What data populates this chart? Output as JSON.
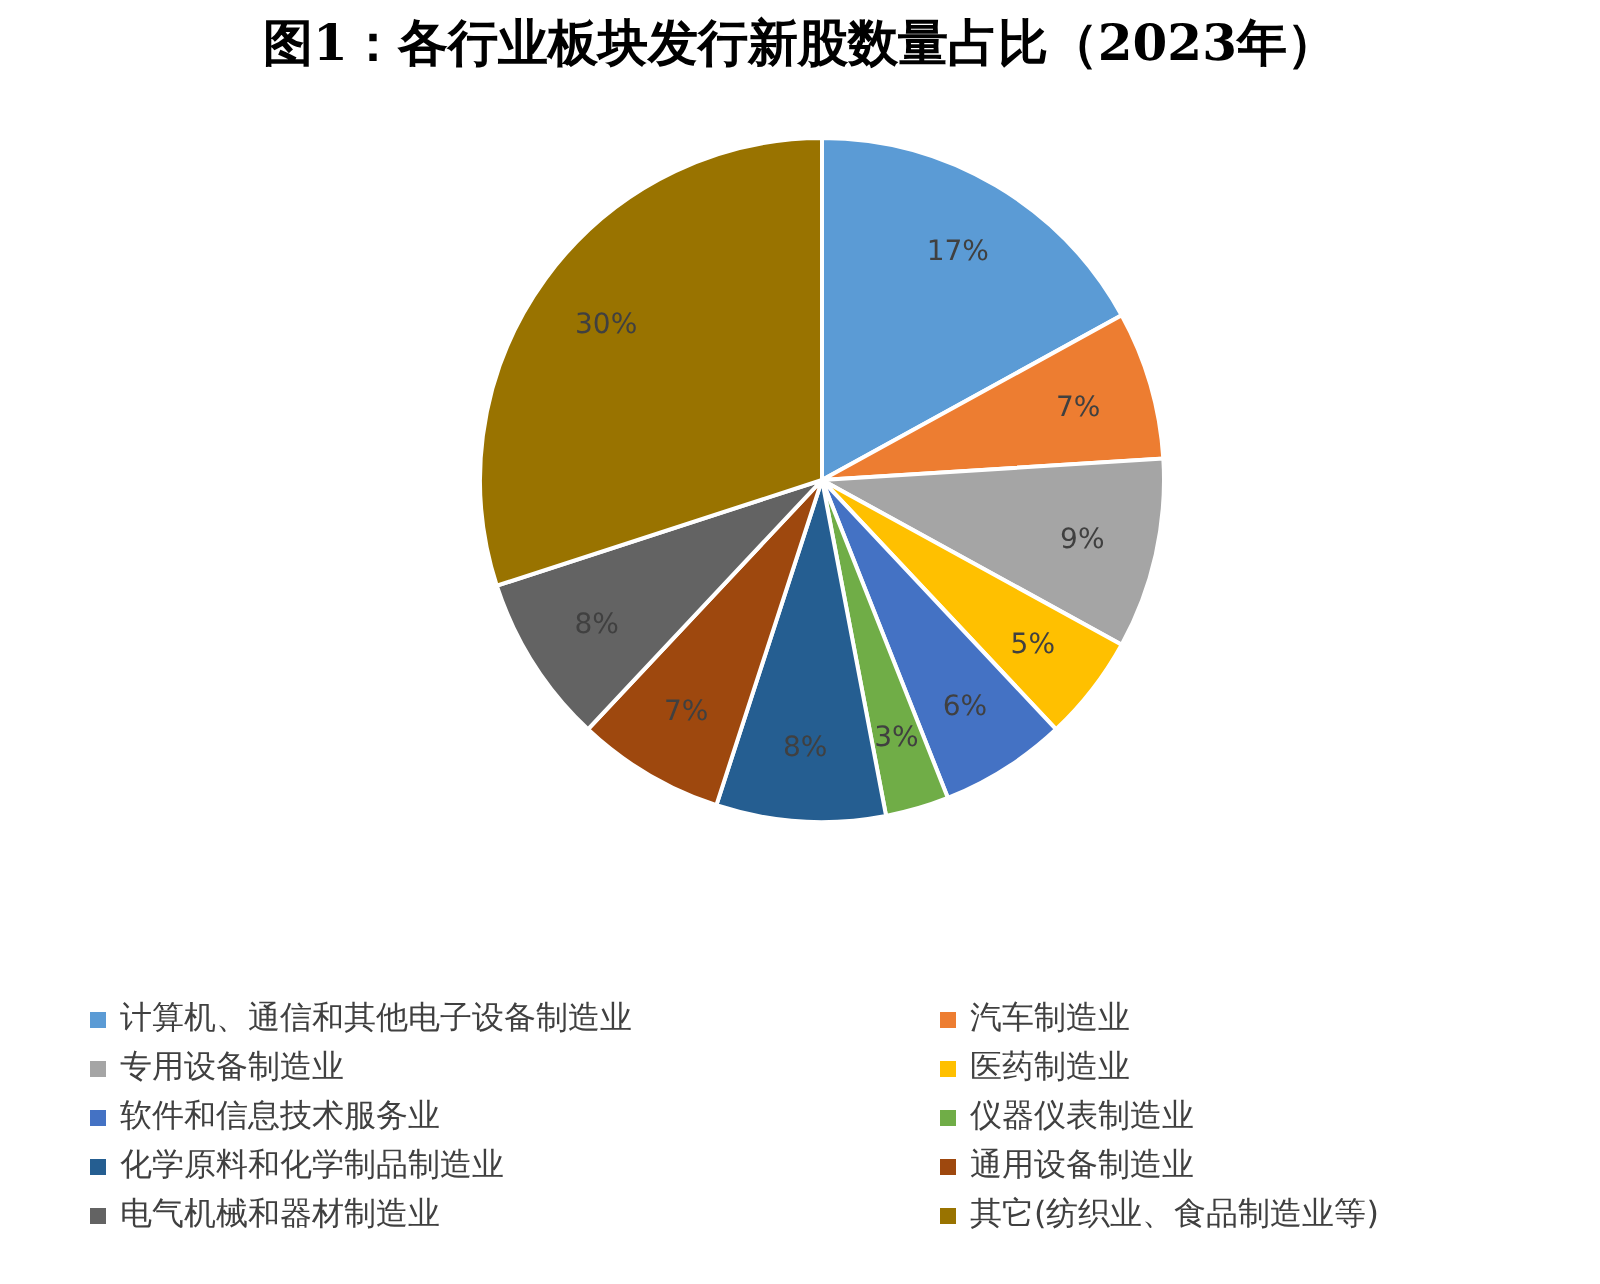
{
  "chart_data": {
    "type": "pie",
    "title": "图1：各行业板块发行新股数量占比（2023年）",
    "categories": [
      "计算机、通信和其他电子设备制造业",
      "汽车制造业",
      "专用设备制造业",
      "医药制造业",
      "软件和信息技术服务业",
      "仪器仪表制造业",
      "化学原料和化学制品制造业",
      "通用设备制造业",
      "电气机械和器材制造业",
      "其它(纺织业、食品制造业等)"
    ],
    "values": [
      17,
      7,
      9,
      5,
      6,
      3,
      8,
      7,
      8,
      30
    ],
    "colors": [
      "#5b9bd5",
      "#ed7d31",
      "#a5a5a5",
      "#ffc000",
      "#4472c4",
      "#70ad47",
      "#255e91",
      "#9e480e",
      "#636363",
      "#997300"
    ],
    "value_labels": [
      "17%",
      "7%",
      "9%",
      "5%",
      "6%",
      "3%",
      "8%",
      "7%",
      "8%",
      "30%"
    ],
    "legend": "bottom"
  }
}
